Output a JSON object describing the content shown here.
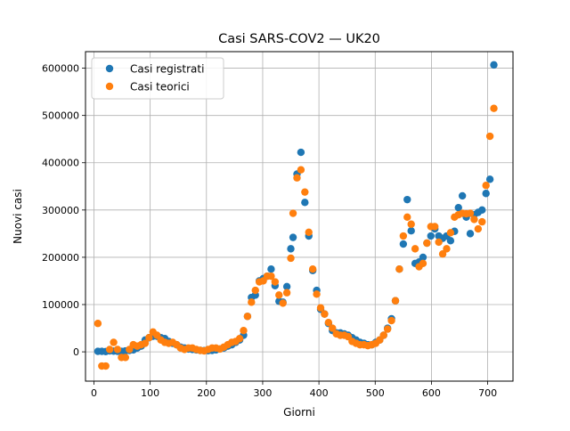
{
  "chart_data": {
    "type": "scatter",
    "title": "Casi SARS-COV2 — UK20",
    "xlabel": "Giorni",
    "ylabel": "Nuovi casi",
    "xlim": [
      -15,
      745
    ],
    "ylim": [
      -62000,
      635000
    ],
    "x_ticks": [
      0,
      100,
      200,
      300,
      400,
      500,
      600,
      700
    ],
    "y_ticks": [
      0,
      100000,
      200000,
      300000,
      400000,
      500000,
      600000
    ],
    "grid": true,
    "legend_position": "top-left",
    "series": [
      {
        "name": "Casi registrati",
        "color": "#1f77b4",
        "points": [
          [
            7,
            1000
          ],
          [
            14,
            1000
          ],
          [
            21,
            500
          ],
          [
            28,
            2000
          ],
          [
            35,
            1500
          ],
          [
            42,
            1000
          ],
          [
            49,
            1000
          ],
          [
            56,
            2000
          ],
          [
            63,
            3000
          ],
          [
            70,
            4000
          ],
          [
            77,
            8000
          ],
          [
            84,
            12000
          ],
          [
            91,
            25000
          ],
          [
            98,
            30000
          ],
          [
            105,
            33000
          ],
          [
            112,
            33000
          ],
          [
            119,
            30000
          ],
          [
            126,
            28000
          ],
          [
            133,
            22000
          ],
          [
            140,
            18000
          ],
          [
            147,
            15000
          ],
          [
            154,
            10000
          ],
          [
            161,
            8000
          ],
          [
            168,
            6000
          ],
          [
            175,
            5000
          ],
          [
            182,
            4000
          ],
          [
            189,
            3000
          ],
          [
            196,
            2500
          ],
          [
            203,
            2500
          ],
          [
            210,
            3000
          ],
          [
            217,
            4000
          ],
          [
            224,
            6000
          ],
          [
            231,
            8000
          ],
          [
            238,
            12000
          ],
          [
            245,
            15000
          ],
          [
            252,
            20000
          ],
          [
            259,
            25000
          ],
          [
            266,
            35000
          ],
          [
            273,
            75000
          ],
          [
            280,
            115000
          ],
          [
            287,
            120000
          ],
          [
            294,
            150000
          ],
          [
            301,
            155000
          ],
          [
            308,
            160000
          ],
          [
            315,
            175000
          ],
          [
            322,
            140000
          ],
          [
            329,
            107000
          ],
          [
            336,
            105000
          ],
          [
            343,
            138000
          ],
          [
            350,
            218000
          ],
          [
            354,
            242000
          ],
          [
            361,
            376000
          ],
          [
            368,
            422000
          ],
          [
            375,
            316000
          ],
          [
            382,
            245000
          ],
          [
            389,
            172000
          ],
          [
            396,
            130000
          ],
          [
            403,
            90000
          ],
          [
            410,
            80000
          ],
          [
            417,
            60000
          ],
          [
            424,
            45000
          ],
          [
            431,
            40000
          ],
          [
            438,
            40000
          ],
          [
            445,
            38000
          ],
          [
            452,
            35000
          ],
          [
            459,
            30000
          ],
          [
            466,
            25000
          ],
          [
            473,
            20000
          ],
          [
            480,
            18000
          ],
          [
            487,
            15000
          ],
          [
            494,
            15000
          ],
          [
            501,
            20000
          ],
          [
            508,
            25000
          ],
          [
            515,
            35000
          ],
          [
            522,
            50000
          ],
          [
            529,
            70000
          ],
          [
            536,
            108000
          ],
          [
            543,
            175000
          ],
          [
            550,
            228000
          ],
          [
            557,
            322000
          ],
          [
            564,
            256000
          ],
          [
            571,
            187000
          ],
          [
            578,
            190000
          ],
          [
            585,
            200000
          ],
          [
            592,
            230000
          ],
          [
            599,
            245000
          ],
          [
            606,
            260000
          ],
          [
            613,
            245000
          ],
          [
            620,
            240000
          ],
          [
            627,
            245000
          ],
          [
            634,
            235000
          ],
          [
            641,
            255000
          ],
          [
            648,
            305000
          ],
          [
            655,
            330000
          ],
          [
            662,
            285000
          ],
          [
            669,
            250000
          ],
          [
            676,
            290000
          ],
          [
            683,
            295000
          ],
          [
            690,
            300000
          ],
          [
            697,
            335000
          ],
          [
            704,
            365000
          ],
          [
            711,
            607000
          ]
        ]
      },
      {
        "name": "Casi teorici",
        "color": "#ff7f0e",
        "points": [
          [
            7,
            60000
          ],
          [
            14,
            -30000
          ],
          [
            21,
            -30000
          ],
          [
            28,
            5000
          ],
          [
            35,
            20000
          ],
          [
            42,
            5000
          ],
          [
            49,
            -12000
          ],
          [
            56,
            -12000
          ],
          [
            63,
            5000
          ],
          [
            70,
            15000
          ],
          [
            77,
            12000
          ],
          [
            84,
            15000
          ],
          [
            91,
            18000
          ],
          [
            98,
            30000
          ],
          [
            105,
            42000
          ],
          [
            112,
            35000
          ],
          [
            119,
            25000
          ],
          [
            126,
            20000
          ],
          [
            133,
            18000
          ],
          [
            140,
            20000
          ],
          [
            147,
            15000
          ],
          [
            154,
            8000
          ],
          [
            161,
            5000
          ],
          [
            168,
            8000
          ],
          [
            175,
            8000
          ],
          [
            182,
            5000
          ],
          [
            189,
            3000
          ],
          [
            196,
            2000
          ],
          [
            203,
            5000
          ],
          [
            210,
            8000
          ],
          [
            217,
            8000
          ],
          [
            224,
            6000
          ],
          [
            231,
            10000
          ],
          [
            238,
            15000
          ],
          [
            245,
            20000
          ],
          [
            252,
            22000
          ],
          [
            259,
            28000
          ],
          [
            266,
            45000
          ],
          [
            273,
            75000
          ],
          [
            280,
            105000
          ],
          [
            287,
            130000
          ],
          [
            294,
            148000
          ],
          [
            301,
            150000
          ],
          [
            308,
            160000
          ],
          [
            315,
            160000
          ],
          [
            322,
            148000
          ],
          [
            329,
            120000
          ],
          [
            336,
            103000
          ],
          [
            343,
            125000
          ],
          [
            350,
            198000
          ],
          [
            354,
            293000
          ],
          [
            361,
            368000
          ],
          [
            368,
            385000
          ],
          [
            375,
            338000
          ],
          [
            382,
            253000
          ],
          [
            389,
            175000
          ],
          [
            396,
            122000
          ],
          [
            403,
            93000
          ],
          [
            410,
            80000
          ],
          [
            417,
            62000
          ],
          [
            424,
            50000
          ],
          [
            431,
            38000
          ],
          [
            438,
            35000
          ],
          [
            445,
            35000
          ],
          [
            452,
            32000
          ],
          [
            459,
            22000
          ],
          [
            466,
            18000
          ],
          [
            473,
            15000
          ],
          [
            480,
            15000
          ],
          [
            487,
            13000
          ],
          [
            494,
            15000
          ],
          [
            501,
            18000
          ],
          [
            508,
            25000
          ],
          [
            515,
            35000
          ],
          [
            522,
            48000
          ],
          [
            529,
            66000
          ],
          [
            536,
            108000
          ],
          [
            543,
            175000
          ],
          [
            550,
            245000
          ],
          [
            557,
            285000
          ],
          [
            564,
            270000
          ],
          [
            571,
            218000
          ],
          [
            578,
            180000
          ],
          [
            585,
            187000
          ],
          [
            592,
            230000
          ],
          [
            599,
            265000
          ],
          [
            606,
            265000
          ],
          [
            613,
            232000
          ],
          [
            620,
            207000
          ],
          [
            627,
            218000
          ],
          [
            634,
            252000
          ],
          [
            641,
            285000
          ],
          [
            648,
            290000
          ],
          [
            655,
            293000
          ],
          [
            662,
            292000
          ],
          [
            669,
            293000
          ],
          [
            676,
            280000
          ],
          [
            683,
            260000
          ],
          [
            690,
            275000
          ],
          [
            697,
            352000
          ],
          [
            704,
            456000
          ],
          [
            711,
            515000
          ]
        ]
      }
    ]
  }
}
